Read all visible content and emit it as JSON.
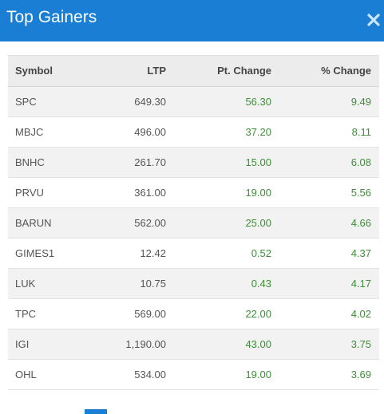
{
  "dialog": {
    "title": "Top Gainers",
    "close_icon": "close-icon",
    "accent_color": "#1a7fd4",
    "positive_color": "#3d8f37"
  },
  "table": {
    "headers": [
      "Symbol",
      "LTP",
      "Pt. Change",
      "% Change"
    ],
    "rows": [
      {
        "symbol": "SPC",
        "ltp": "649.30",
        "pt_change": "56.30",
        "pct_change": "9.49"
      },
      {
        "symbol": "MBJC",
        "ltp": "496.00",
        "pt_change": "37.20",
        "pct_change": "8.11"
      },
      {
        "symbol": "BNHC",
        "ltp": "261.70",
        "pt_change": "15.00",
        "pct_change": "6.08"
      },
      {
        "symbol": "PRVU",
        "ltp": "361.00",
        "pt_change": "19.00",
        "pct_change": "5.56"
      },
      {
        "symbol": "BARUN",
        "ltp": "562.00",
        "pt_change": "25.00",
        "pct_change": "4.66"
      },
      {
        "symbol": "GIMES1",
        "ltp": "12.42",
        "pt_change": "0.52",
        "pct_change": "4.37"
      },
      {
        "symbol": "LUK",
        "ltp": "10.75",
        "pt_change": "0.43",
        "pct_change": "4.17"
      },
      {
        "symbol": "TPC",
        "ltp": "569.00",
        "pt_change": "22.00",
        "pct_change": "4.02"
      },
      {
        "symbol": "IGI",
        "ltp": "1,190.00",
        "pt_change": "43.00",
        "pct_change": "3.75"
      },
      {
        "symbol": "OHL",
        "ltp": "534.00",
        "pt_change": "19.00",
        "pct_change": "3.69"
      }
    ]
  }
}
